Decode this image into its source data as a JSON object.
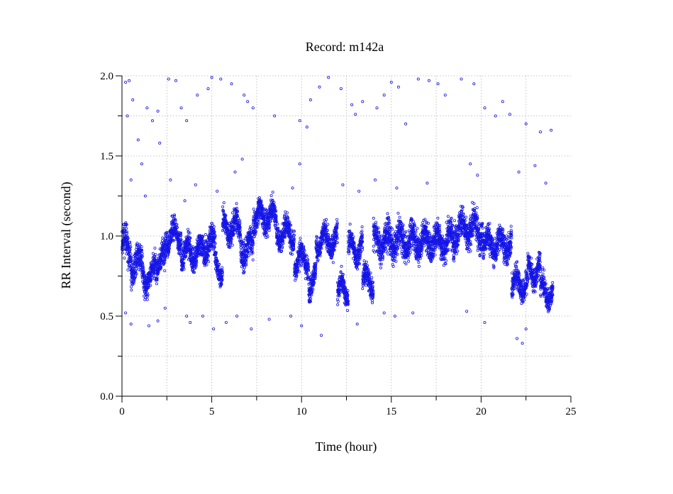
{
  "chart_data": {
    "type": "scatter",
    "title": "Record:  m142a",
    "xlabel": "Time (hour)",
    "ylabel": "RR Interval (second)",
    "xlim": [
      0,
      25
    ],
    "ylim": [
      0,
      2.0
    ],
    "x_ticks": [
      0,
      5,
      10,
      15,
      20,
      25
    ],
    "y_ticks": [
      0.0,
      0.5,
      1.0,
      1.5,
      2.0
    ],
    "x_tick_labels": [
      "0",
      "5",
      "10",
      "15",
      "20",
      "25"
    ],
    "y_tick_labels": [
      "0.0",
      "0.5",
      "1.0",
      "1.5",
      "2.0"
    ],
    "grid": true,
    "marker": "open-circle",
    "color": "#1515e6",
    "segments": [
      {
        "t0": 0.0,
        "t1": 0.5,
        "center": 0.93,
        "spread": 0.16
      },
      {
        "t0": 0.5,
        "t1": 1.2,
        "center": 0.82,
        "spread": 0.15
      },
      {
        "t0": 1.2,
        "t1": 1.8,
        "center": 0.74,
        "spread": 0.12
      },
      {
        "t0": 1.8,
        "t1": 2.4,
        "center": 0.85,
        "spread": 0.13
      },
      {
        "t0": 2.4,
        "t1": 3.3,
        "center": 1.0,
        "spread": 0.13
      },
      {
        "t0": 3.3,
        "t1": 4.6,
        "center": 0.9,
        "spread": 0.13
      },
      {
        "t0": 4.6,
        "t1": 5.2,
        "center": 0.95,
        "spread": 0.15
      },
      {
        "t0": 5.2,
        "t1": 5.6,
        "center": 0.8,
        "spread": 0.1
      },
      {
        "t0": 5.6,
        "t1": 6.6,
        "center": 1.05,
        "spread": 0.14
      },
      {
        "t0": 6.6,
        "t1": 7.3,
        "center": 0.92,
        "spread": 0.14
      },
      {
        "t0": 7.3,
        "t1": 8.6,
        "center": 1.12,
        "spread": 0.13
      },
      {
        "t0": 8.6,
        "t1": 9.6,
        "center": 1.02,
        "spread": 0.13
      },
      {
        "t0": 9.6,
        "t1": 10.4,
        "center": 0.85,
        "spread": 0.13
      },
      {
        "t0": 10.4,
        "t1": 10.8,
        "center": 0.72,
        "spread": 0.12
      },
      {
        "t0": 10.8,
        "t1": 12.0,
        "center": 0.97,
        "spread": 0.12
      },
      {
        "t0": 12.0,
        "t1": 12.6,
        "center": 0.66,
        "spread": 0.11
      },
      {
        "t0": 12.6,
        "t1": 13.4,
        "center": 0.92,
        "spread": 0.12
      },
      {
        "t0": 13.4,
        "t1": 14.0,
        "center": 0.72,
        "spread": 0.13
      },
      {
        "t0": 14.0,
        "t1": 18.5,
        "center": 0.97,
        "spread": 0.16
      },
      {
        "t0": 18.5,
        "t1": 20.1,
        "center": 1.04,
        "spread": 0.16
      },
      {
        "t0": 20.1,
        "t1": 21.7,
        "center": 0.95,
        "spread": 0.14
      },
      {
        "t0": 21.7,
        "t1": 22.6,
        "center": 0.7,
        "spread": 0.13
      },
      {
        "t0": 22.6,
        "t1": 23.3,
        "center": 0.78,
        "spread": 0.12
      },
      {
        "t0": 23.3,
        "t1": 24.0,
        "center": 0.65,
        "spread": 0.12
      }
    ],
    "outliers": [
      [
        0.2,
        1.96
      ],
      [
        0.4,
        1.97
      ],
      [
        0.3,
        1.75
      ],
      [
        0.6,
        1.85
      ],
      [
        0.9,
        1.6
      ],
      [
        1.1,
        1.45
      ],
      [
        1.4,
        1.8
      ],
      [
        1.7,
        1.72
      ],
      [
        2.0,
        1.78
      ],
      [
        2.1,
        1.58
      ],
      [
        2.6,
        1.98
      ],
      [
        3.0,
        1.97
      ],
      [
        3.3,
        1.8
      ],
      [
        3.6,
        1.72
      ],
      [
        4.2,
        1.88
      ],
      [
        4.8,
        1.92
      ],
      [
        5.0,
        1.99
      ],
      [
        5.5,
        1.98
      ],
      [
        6.1,
        1.95
      ],
      [
        6.8,
        1.88
      ],
      [
        7.0,
        1.84
      ],
      [
        7.3,
        1.8
      ],
      [
        8.5,
        1.75
      ],
      [
        9.9,
        1.72
      ],
      [
        10.3,
        1.68
      ],
      [
        10.5,
        1.85
      ],
      [
        11.0,
        1.93
      ],
      [
        11.5,
        1.99
      ],
      [
        12.2,
        1.92
      ],
      [
        12.8,
        1.82
      ],
      [
        13.0,
        1.76
      ],
      [
        13.4,
        1.84
      ],
      [
        14.2,
        1.8
      ],
      [
        14.6,
        1.88
      ],
      [
        15.0,
        1.96
      ],
      [
        15.4,
        1.93
      ],
      [
        15.8,
        1.7
      ],
      [
        16.5,
        1.98
      ],
      [
        17.1,
        1.97
      ],
      [
        17.6,
        1.95
      ],
      [
        18.0,
        1.88
      ],
      [
        18.9,
        1.98
      ],
      [
        19.6,
        1.95
      ],
      [
        20.2,
        1.8
      ],
      [
        20.8,
        1.75
      ],
      [
        21.2,
        1.84
      ],
      [
        21.6,
        1.76
      ],
      [
        22.5,
        1.7
      ],
      [
        23.3,
        1.65
      ],
      [
        23.9,
        1.66
      ],
      [
        0.2,
        0.52
      ],
      [
        0.5,
        0.45
      ],
      [
        1.5,
        0.44
      ],
      [
        2.0,
        0.47
      ],
      [
        2.4,
        0.55
      ],
      [
        3.6,
        0.5
      ],
      [
        3.8,
        0.46
      ],
      [
        4.5,
        0.5
      ],
      [
        5.1,
        0.42
      ],
      [
        5.8,
        0.46
      ],
      [
        6.4,
        0.5
      ],
      [
        7.2,
        0.42
      ],
      [
        8.2,
        0.48
      ],
      [
        9.4,
        0.5
      ],
      [
        10.0,
        0.44
      ],
      [
        11.1,
        0.38
      ],
      [
        13.1,
        0.45
      ],
      [
        14.6,
        0.52
      ],
      [
        15.2,
        0.5
      ],
      [
        16.2,
        0.52
      ],
      [
        19.2,
        0.53
      ],
      [
        20.2,
        0.46
      ],
      [
        22.0,
        0.36
      ],
      [
        22.3,
        0.33
      ],
      [
        22.5,
        0.42
      ],
      [
        0.5,
        1.35
      ],
      [
        1.3,
        1.25
      ],
      [
        2.7,
        1.35
      ],
      [
        3.5,
        1.22
      ],
      [
        4.1,
        1.32
      ],
      [
        5.3,
        1.28
      ],
      [
        6.3,
        1.4
      ],
      [
        6.7,
        1.48
      ],
      [
        9.5,
        1.3
      ],
      [
        9.9,
        1.45
      ],
      [
        12.3,
        1.32
      ],
      [
        13.2,
        1.28
      ],
      [
        14.1,
        1.35
      ],
      [
        15.3,
        1.3
      ],
      [
        17.0,
        1.33
      ],
      [
        19.4,
        1.45
      ],
      [
        19.8,
        1.38
      ],
      [
        22.1,
        1.4
      ],
      [
        23.0,
        1.44
      ],
      [
        23.6,
        1.33
      ]
    ]
  }
}
